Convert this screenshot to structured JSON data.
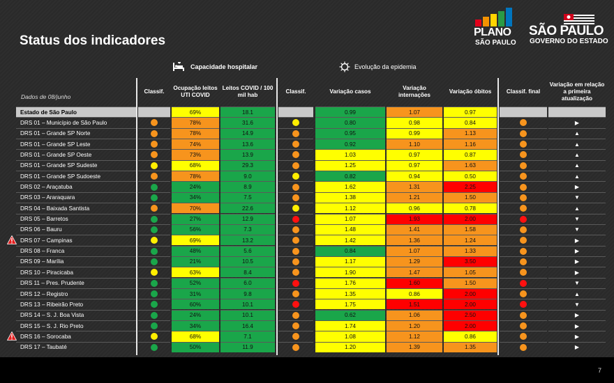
{
  "title": "Status dos indicadores",
  "logo_plano": {
    "word": "PLANO",
    "sub": "SÃO PAULO",
    "bar_colors": [
      "#e2001a",
      "#f39200",
      "#ffd500",
      "#2a9a45",
      "#0075be"
    ]
  },
  "logo_sp": {
    "word": "SÃO PAULO",
    "sub": "GOVERNO DO ESTADO"
  },
  "sections": {
    "capacidade": "Capacidade hospitalar",
    "evolucao": "Evolução da epidemia"
  },
  "date_label": "Dados de 08/junho",
  "headers": {
    "classif": "Classif.",
    "ocupacao": "Ocupação leitos UTI COVID",
    "leitos": "Leitos COVID / 100 mil hab",
    "classif2": "Classif.",
    "var_casos": "Variação casos",
    "var_intern": "Variação internações",
    "var_obitos": "Variação óbitos",
    "classif_final": "Classif. final",
    "var_primeira": "Variação em relação a primeira atualização"
  },
  "colors": {
    "g": "#1aa64a",
    "y": "#ffff00",
    "o": "#f7941d",
    "r": "#ff0000",
    "dot_g": "#1aa64a",
    "dot_y": "#ffee00",
    "dot_o": "#f7941d",
    "dot_r": "#ff1010"
  },
  "rows": [
    {
      "name": "Estado de São Paulo",
      "state": true,
      "c1": "",
      "ocup": "69%",
      "ocup_c": "y",
      "leitos": "18.1",
      "leitos_c": "g",
      "c2": "",
      "casos": "0.99",
      "casos_c": "g",
      "intern": "1.07",
      "intern_c": "o",
      "obitos": "0.97",
      "obitos_c": "y",
      "cf": "",
      "arrow": ""
    },
    {
      "name": "DRS 01 – Município de São Paulo",
      "c1": "o",
      "ocup": "78%",
      "ocup_c": "o",
      "leitos": "31.6",
      "leitos_c": "g",
      "c2": "y",
      "casos": "0.80",
      "casos_c": "g",
      "intern": "0.98",
      "intern_c": "y",
      "obitos": "0.84",
      "obitos_c": "y",
      "cf": "o",
      "arrow": "▶"
    },
    {
      "name": "DRS 01 – Grande SP Norte",
      "c1": "o",
      "ocup": "78%",
      "ocup_c": "o",
      "leitos": "14.9",
      "leitos_c": "g",
      "c2": "o",
      "casos": "0.95",
      "casos_c": "g",
      "intern": "0.99",
      "intern_c": "y",
      "obitos": "1.13",
      "obitos_c": "o",
      "cf": "o",
      "arrow": "▲"
    },
    {
      "name": "DRS 01 – Grande SP Leste",
      "c1": "o",
      "ocup": "74%",
      "ocup_c": "o",
      "leitos": "13.6",
      "leitos_c": "g",
      "c2": "o",
      "casos": "0.92",
      "casos_c": "g",
      "intern": "1.10",
      "intern_c": "o",
      "obitos": "1.16",
      "obitos_c": "o",
      "cf": "o",
      "arrow": "▲"
    },
    {
      "name": "DRS 01 – Grande SP Oeste",
      "c1": "o",
      "ocup": "73%",
      "ocup_c": "o",
      "leitos": "13.9",
      "leitos_c": "g",
      "c2": "o",
      "casos": "1.03",
      "casos_c": "y",
      "intern": "0.97",
      "intern_c": "y",
      "obitos": "0.87",
      "obitos_c": "y",
      "cf": "o",
      "arrow": "▲"
    },
    {
      "name": "DRS 01 – Grande SP Sudeste",
      "c1": "y",
      "ocup": "68%",
      "ocup_c": "y",
      "leitos": "29.3",
      "leitos_c": "g",
      "c2": "o",
      "casos": "1.25",
      "casos_c": "y",
      "intern": "0.97",
      "intern_c": "y",
      "obitos": "1.63",
      "obitos_c": "o",
      "cf": "o",
      "arrow": "▲"
    },
    {
      "name": "DRS 01 – Grande SP Sudoeste",
      "c1": "o",
      "ocup": "78%",
      "ocup_c": "o",
      "leitos": "9.0",
      "leitos_c": "g",
      "c2": "y",
      "casos": "0.82",
      "casos_c": "g",
      "intern": "0.94",
      "intern_c": "y",
      "obitos": "0.50",
      "obitos_c": "y",
      "cf": "o",
      "arrow": "▲"
    },
    {
      "name": "DRS 02 – Araçatuba",
      "c1": "g",
      "ocup": "24%",
      "ocup_c": "g",
      "leitos": "8.9",
      "leitos_c": "g",
      "c2": "o",
      "casos": "1.62",
      "casos_c": "y",
      "intern": "1.31",
      "intern_c": "o",
      "obitos": "2.25",
      "obitos_c": "r",
      "cf": "o",
      "arrow": "▶"
    },
    {
      "name": "DRS 03 – Araraquara",
      "c1": "g",
      "ocup": "34%",
      "ocup_c": "g",
      "leitos": "7.5",
      "leitos_c": "g",
      "c2": "o",
      "casos": "1.38",
      "casos_c": "y",
      "intern": "1.21",
      "intern_c": "o",
      "obitos": "1.50",
      "obitos_c": "o",
      "cf": "o",
      "arrow": "▼"
    },
    {
      "name": "DRS 04 – Baixada Santista",
      "c1": "o",
      "ocup": "70%",
      "ocup_c": "o",
      "leitos": "22.6",
      "leitos_c": "g",
      "c2": "y",
      "casos": "1.12",
      "casos_c": "y",
      "intern": "0.96",
      "intern_c": "y",
      "obitos": "0.78",
      "obitos_c": "y",
      "cf": "o",
      "arrow": "▲"
    },
    {
      "name": "DRS 05 – Barretos",
      "c1": "g",
      "ocup": "27%",
      "ocup_c": "g",
      "leitos": "12.9",
      "leitos_c": "g",
      "c2": "r",
      "casos": "1.07",
      "casos_c": "y",
      "intern": "1.93",
      "intern_c": "r",
      "obitos": "2.00",
      "obitos_c": "r",
      "cf": "r",
      "arrow": "▼"
    },
    {
      "name": "DRS 06 – Bauru",
      "c1": "g",
      "ocup": "56%",
      "ocup_c": "g",
      "leitos": "7.3",
      "leitos_c": "g",
      "c2": "o",
      "casos": "1.48",
      "casos_c": "y",
      "intern": "1.41",
      "intern_c": "o",
      "obitos": "1.58",
      "obitos_c": "o",
      "cf": "o",
      "arrow": "▼"
    },
    {
      "name": "DRS 07 – Campinas",
      "warn": true,
      "c1": "y",
      "ocup": "69%",
      "ocup_c": "y",
      "leitos": "13.2",
      "leitos_c": "g",
      "c2": "o",
      "casos": "1.42",
      "casos_c": "y",
      "intern": "1.36",
      "intern_c": "o",
      "obitos": "1.24",
      "obitos_c": "o",
      "cf": "o",
      "arrow": "▶"
    },
    {
      "name": "DRS 08 – Franca",
      "c1": "g",
      "ocup": "48%",
      "ocup_c": "g",
      "leitos": "5.6",
      "leitos_c": "g",
      "c2": "o",
      "casos": "0.84",
      "casos_c": "g",
      "intern": "1.07",
      "intern_c": "o",
      "obitos": "1.33",
      "obitos_c": "o",
      "cf": "o",
      "arrow": "▶"
    },
    {
      "name": "DRS 09 – Marília",
      "c1": "g",
      "ocup": "21%",
      "ocup_c": "g",
      "leitos": "10.5",
      "leitos_c": "g",
      "c2": "o",
      "casos": "1.17",
      "casos_c": "y",
      "intern": "1.29",
      "intern_c": "o",
      "obitos": "3.50",
      "obitos_c": "r",
      "cf": "o",
      "arrow": "▶"
    },
    {
      "name": "DRS 10 – Piracicaba",
      "c1": "y",
      "ocup": "63%",
      "ocup_c": "y",
      "leitos": "8.4",
      "leitos_c": "g",
      "c2": "o",
      "casos": "1.90",
      "casos_c": "y",
      "intern": "1.47",
      "intern_c": "o",
      "obitos": "1.05",
      "obitos_c": "o",
      "cf": "o",
      "arrow": "▶"
    },
    {
      "name": "DRS 11 – Pres. Prudente",
      "c1": "g",
      "ocup": "52%",
      "ocup_c": "g",
      "leitos": "6.0",
      "leitos_c": "g",
      "c2": "r",
      "casos": "1.76",
      "casos_c": "y",
      "intern": "1.60",
      "intern_c": "r",
      "obitos": "1.50",
      "obitos_c": "o",
      "cf": "r",
      "arrow": "▼"
    },
    {
      "name": "DRS 12 – Registro",
      "c1": "g",
      "ocup": "31%",
      "ocup_c": "g",
      "leitos": "9.8",
      "leitos_c": "g",
      "c2": "o",
      "casos": "1.35",
      "casos_c": "y",
      "intern": "0.86",
      "intern_c": "y",
      "obitos": "2.00",
      "obitos_c": "r",
      "cf": "o",
      "arrow": "▲"
    },
    {
      "name": "DRS 13 – Ribeirão Preto",
      "c1": "g",
      "ocup": "60%",
      "ocup_c": "g",
      "leitos": "10.1",
      "leitos_c": "g",
      "c2": "r",
      "casos": "1.75",
      "casos_c": "y",
      "intern": "1.51",
      "intern_c": "r",
      "obitos": "2.00",
      "obitos_c": "r",
      "cf": "r",
      "arrow": "▼"
    },
    {
      "name": "DRS 14 – S. J. Boa Vista",
      "c1": "g",
      "ocup": "24%",
      "ocup_c": "g",
      "leitos": "10.1",
      "leitos_c": "g",
      "c2": "o",
      "casos": "0.62",
      "casos_c": "g",
      "intern": "1.06",
      "intern_c": "o",
      "obitos": "2.50",
      "obitos_c": "r",
      "cf": "o",
      "arrow": "▶"
    },
    {
      "name": "DRS 15 – S. J. Rio Preto",
      "c1": "g",
      "ocup": "34%",
      "ocup_c": "g",
      "leitos": "16.4",
      "leitos_c": "g",
      "c2": "o",
      "casos": "1.74",
      "casos_c": "y",
      "intern": "1.20",
      "intern_c": "o",
      "obitos": "2.00",
      "obitos_c": "r",
      "cf": "o",
      "arrow": "▶"
    },
    {
      "name": "DRS 16 – Sorocaba",
      "warn": true,
      "c1": "y",
      "ocup": "68%",
      "ocup_c": "y",
      "leitos": "7.1",
      "leitos_c": "g",
      "c2": "o",
      "casos": "1.08",
      "casos_c": "y",
      "intern": "1.12",
      "intern_c": "o",
      "obitos": "0.86",
      "obitos_c": "y",
      "cf": "o",
      "arrow": "▶"
    },
    {
      "name": "DRS 17 – Taubaté",
      "c1": "g",
      "ocup": "50%",
      "ocup_c": "g",
      "leitos": "11.9",
      "leitos_c": "g",
      "c2": "o",
      "casos": "1.20",
      "casos_c": "y",
      "intern": "1.39",
      "intern_c": "o",
      "obitos": "1.35",
      "obitos_c": "o",
      "cf": "o",
      "arrow": "▶"
    }
  ],
  "page_number": "7"
}
